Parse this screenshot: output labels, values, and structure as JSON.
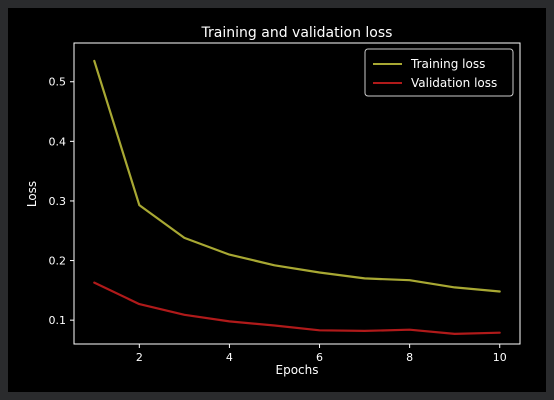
{
  "chart_data": {
    "type": "line",
    "title": "Training and validation loss",
    "xlabel": "Epochs",
    "ylabel": "Loss",
    "x": [
      1,
      2,
      3,
      4,
      5,
      6,
      7,
      8,
      9,
      10
    ],
    "xticks": [
      2,
      4,
      6,
      8,
      10
    ],
    "yticks": [
      0.1,
      0.2,
      0.3,
      0.4,
      0.5
    ],
    "xtick_labels": [
      "2",
      "4",
      "6",
      "8",
      "10"
    ],
    "ytick_labels": [
      "0.1",
      "0.2",
      "0.3",
      "0.4",
      "0.5"
    ],
    "xlim": [
      0.55,
      10.45
    ],
    "ylim": [
      0.06,
      0.565
    ],
    "grid": false,
    "legend_position": "top-right",
    "series": [
      {
        "name": "Training loss",
        "color": "#a8a833",
        "values": [
          0.535,
          0.293,
          0.238,
          0.21,
          0.192,
          0.18,
          0.17,
          0.167,
          0.155,
          0.148
        ]
      },
      {
        "name": "Validation loss",
        "color": "#b01a1a",
        "values": [
          0.163,
          0.127,
          0.109,
          0.098,
          0.091,
          0.083,
          0.082,
          0.084,
          0.077,
          0.079
        ]
      }
    ]
  }
}
